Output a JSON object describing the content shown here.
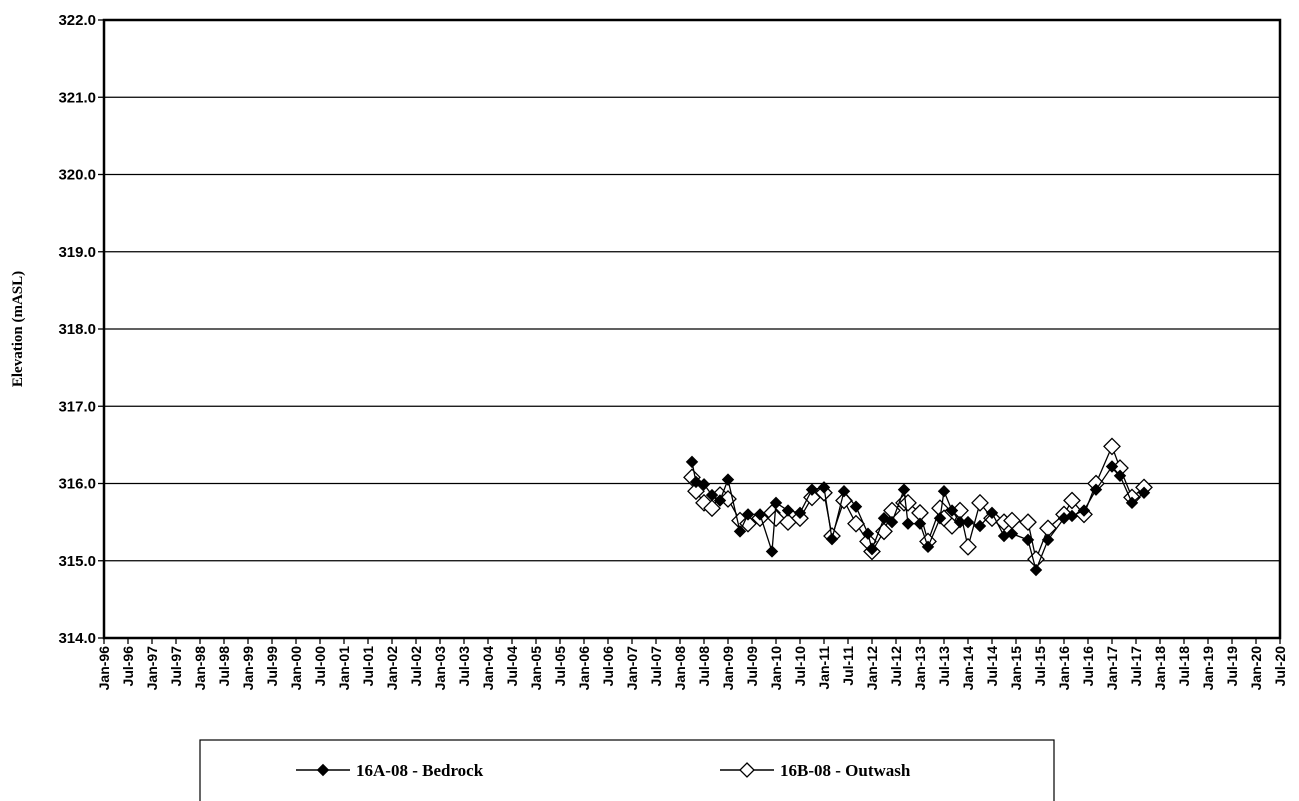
{
  "chart_data": {
    "type": "line",
    "title": "",
    "xlabel": "",
    "ylabel": "Elevation (mASL)",
    "ylim": [
      314.0,
      322.0
    ],
    "yticks": [
      "314.0",
      "315.0",
      "316.0",
      "317.0",
      "318.0",
      "319.0",
      "320.0",
      "321.0",
      "322.0"
    ],
    "xlim": [
      "1996-01",
      "2020-07"
    ],
    "xticks": [
      "Jan-96",
      "Jul-96",
      "Jan-97",
      "Jul-97",
      "Jan-98",
      "Jul-98",
      "Jan-99",
      "Jul-99",
      "Jan-00",
      "Jul-00",
      "Jan-01",
      "Jul-01",
      "Jan-02",
      "Jul-02",
      "Jan-03",
      "Jul-03",
      "Jan-04",
      "Jul-04",
      "Jan-05",
      "Jul-05",
      "Jan-06",
      "Jul-06",
      "Jan-07",
      "Jul-07",
      "Jan-08",
      "Jul-08",
      "Jan-09",
      "Jul-09",
      "Jan-10",
      "Jul-10",
      "Jan-11",
      "Jul-11",
      "Jan-12",
      "Jul-12",
      "Jan-13",
      "Jul-13",
      "Jan-14",
      "Jul-14",
      "Jan-15",
      "Jul-15",
      "Jan-16",
      "Jul-16",
      "Jan-17",
      "Jul-17",
      "Jan-18",
      "Jul-18",
      "Jan-19",
      "Jul-19",
      "Jan-20",
      "Jul-20"
    ],
    "grid": "horizontal",
    "legend_position": "bottom",
    "series": [
      {
        "name": "16A-08 - Bedrock",
        "marker": "filled-diamond",
        "color": "#000000",
        "points": [
          [
            "2008-04",
            316.28
          ],
          [
            "2008-05",
            316.02
          ],
          [
            "2008-07",
            315.99
          ],
          [
            "2008-09",
            315.85
          ],
          [
            "2008-11",
            315.78
          ],
          [
            "2009-01",
            316.05
          ],
          [
            "2009-04",
            315.38
          ],
          [
            "2009-06",
            315.6
          ],
          [
            "2009-09",
            315.6
          ],
          [
            "2009-12",
            315.12
          ],
          [
            "2010-01",
            315.75
          ],
          [
            "2010-04",
            315.65
          ],
          [
            "2010-07",
            315.62
          ],
          [
            "2010-10",
            315.92
          ],
          [
            "2011-01",
            315.95
          ],
          [
            "2011-03",
            315.28
          ],
          [
            "2011-06",
            315.9
          ],
          [
            "2011-09",
            315.7
          ],
          [
            "2011-12",
            315.35
          ],
          [
            "2012-01",
            315.15
          ],
          [
            "2012-04",
            315.55
          ],
          [
            "2012-06",
            315.5
          ],
          [
            "2012-09",
            315.92
          ],
          [
            "2012-10",
            315.48
          ],
          [
            "2013-01",
            315.48
          ],
          [
            "2013-03",
            315.18
          ],
          [
            "2013-06",
            315.55
          ],
          [
            "2013-07",
            315.9
          ],
          [
            "2013-09",
            315.65
          ],
          [
            "2013-11",
            315.5
          ],
          [
            "2014-01",
            315.5
          ],
          [
            "2014-04",
            315.45
          ],
          [
            "2014-07",
            315.62
          ],
          [
            "2014-10",
            315.32
          ],
          [
            "2014-12",
            315.35
          ],
          [
            "2015-04",
            315.27
          ],
          [
            "2015-06",
            314.88
          ],
          [
            "2015-09",
            315.27
          ],
          [
            "2016-01",
            315.55
          ],
          [
            "2016-03",
            315.58
          ],
          [
            "2016-06",
            315.65
          ],
          [
            "2016-09",
            315.92
          ],
          [
            "2017-01",
            316.22
          ],
          [
            "2017-03",
            316.1
          ],
          [
            "2017-06",
            315.75
          ],
          [
            "2017-09",
            315.88
          ]
        ]
      },
      {
        "name": "16B-08 - Outwash",
        "marker": "open-diamond",
        "color": "#000000",
        "points": [
          [
            "2008-04",
            316.08
          ],
          [
            "2008-05",
            315.9
          ],
          [
            "2008-07",
            315.75
          ],
          [
            "2008-09",
            315.68
          ],
          [
            "2008-11",
            315.85
          ],
          [
            "2009-01",
            315.8
          ],
          [
            "2009-04",
            315.52
          ],
          [
            "2009-06",
            315.48
          ],
          [
            "2009-09",
            315.55
          ],
          [
            "2009-12",
            315.62
          ],
          [
            "2010-01",
            315.55
          ],
          [
            "2010-04",
            315.5
          ],
          [
            "2010-07",
            315.55
          ],
          [
            "2010-10",
            315.82
          ],
          [
            "2011-01",
            315.88
          ],
          [
            "2011-03",
            315.32
          ],
          [
            "2011-06",
            315.78
          ],
          [
            "2011-09",
            315.48
          ],
          [
            "2011-12",
            315.25
          ],
          [
            "2012-01",
            315.12
          ],
          [
            "2012-04",
            315.38
          ],
          [
            "2012-06",
            315.65
          ],
          [
            "2012-09",
            315.75
          ],
          [
            "2012-10",
            315.75
          ],
          [
            "2013-01",
            315.62
          ],
          [
            "2013-03",
            315.25
          ],
          [
            "2013-06",
            315.68
          ],
          [
            "2013-07",
            315.55
          ],
          [
            "2013-09",
            315.45
          ],
          [
            "2013-11",
            315.65
          ],
          [
            "2014-01",
            315.18
          ],
          [
            "2014-04",
            315.75
          ],
          [
            "2014-07",
            315.55
          ],
          [
            "2014-10",
            315.5
          ],
          [
            "2014-12",
            315.52
          ],
          [
            "2015-04",
            315.5
          ],
          [
            "2015-06",
            315.02
          ],
          [
            "2015-09",
            315.42
          ],
          [
            "2016-01",
            315.6
          ],
          [
            "2016-03",
            315.78
          ],
          [
            "2016-06",
            315.6
          ],
          [
            "2016-09",
            316.0
          ],
          [
            "2017-01",
            316.48
          ],
          [
            "2017-03",
            316.2
          ],
          [
            "2017-06",
            315.82
          ],
          [
            "2017-09",
            315.95
          ]
        ]
      }
    ]
  }
}
